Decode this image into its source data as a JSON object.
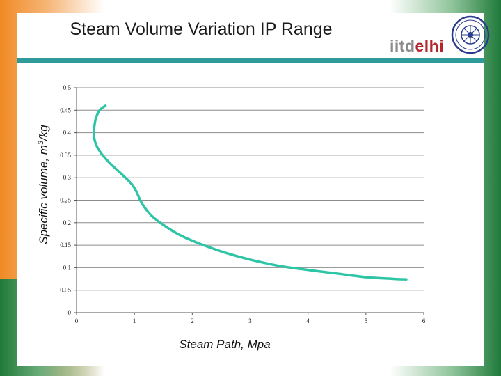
{
  "slide": {
    "title": "Steam Volume Variation IP Range",
    "logo": {
      "prefix": "iitd",
      "suffix": "elhi"
    }
  },
  "colors": {
    "series": "#2ec4a6",
    "title_bar": "#2e9a9a",
    "grid": "#8c8c8c",
    "logo_red": "#b3272e",
    "seal_blue": "#2a3b8f"
  },
  "chart_data": {
    "type": "line",
    "title": "",
    "xlabel": "Steam Path, Mpa",
    "ylabel": "Specific volume, m3/kg",
    "xlim": [
      0,
      6
    ],
    "ylim": [
      0,
      0.5
    ],
    "x_ticks": [
      "0",
      "1",
      "2",
      "3",
      "4",
      "5",
      "6"
    ],
    "y_ticks": [
      "0",
      "0.05",
      "0.1",
      "0.15",
      "0.2",
      "0.25",
      "0.3",
      "0.35",
      "0.4",
      "0.45",
      "0.5"
    ],
    "grid": "horizontal",
    "legend": "none",
    "series": [
      {
        "x": [
          0.5,
          0.4,
          0.33,
          0.3,
          0.32,
          0.37,
          0.45,
          0.57,
          0.72,
          0.86,
          0.97,
          1.05,
          1.1,
          1.17,
          1.3,
          1.5,
          1.75,
          2.0,
          2.3,
          2.6,
          3.0,
          3.5,
          4.0,
          4.5,
          5.0,
          5.5,
          5.7
        ],
        "y": [
          0.46,
          0.45,
          0.43,
          0.4,
          0.38,
          0.365,
          0.35,
          0.333,
          0.315,
          0.298,
          0.283,
          0.265,
          0.25,
          0.235,
          0.215,
          0.195,
          0.175,
          0.16,
          0.145,
          0.132,
          0.118,
          0.104,
          0.095,
          0.087,
          0.079,
          0.075,
          0.074
        ]
      }
    ]
  }
}
